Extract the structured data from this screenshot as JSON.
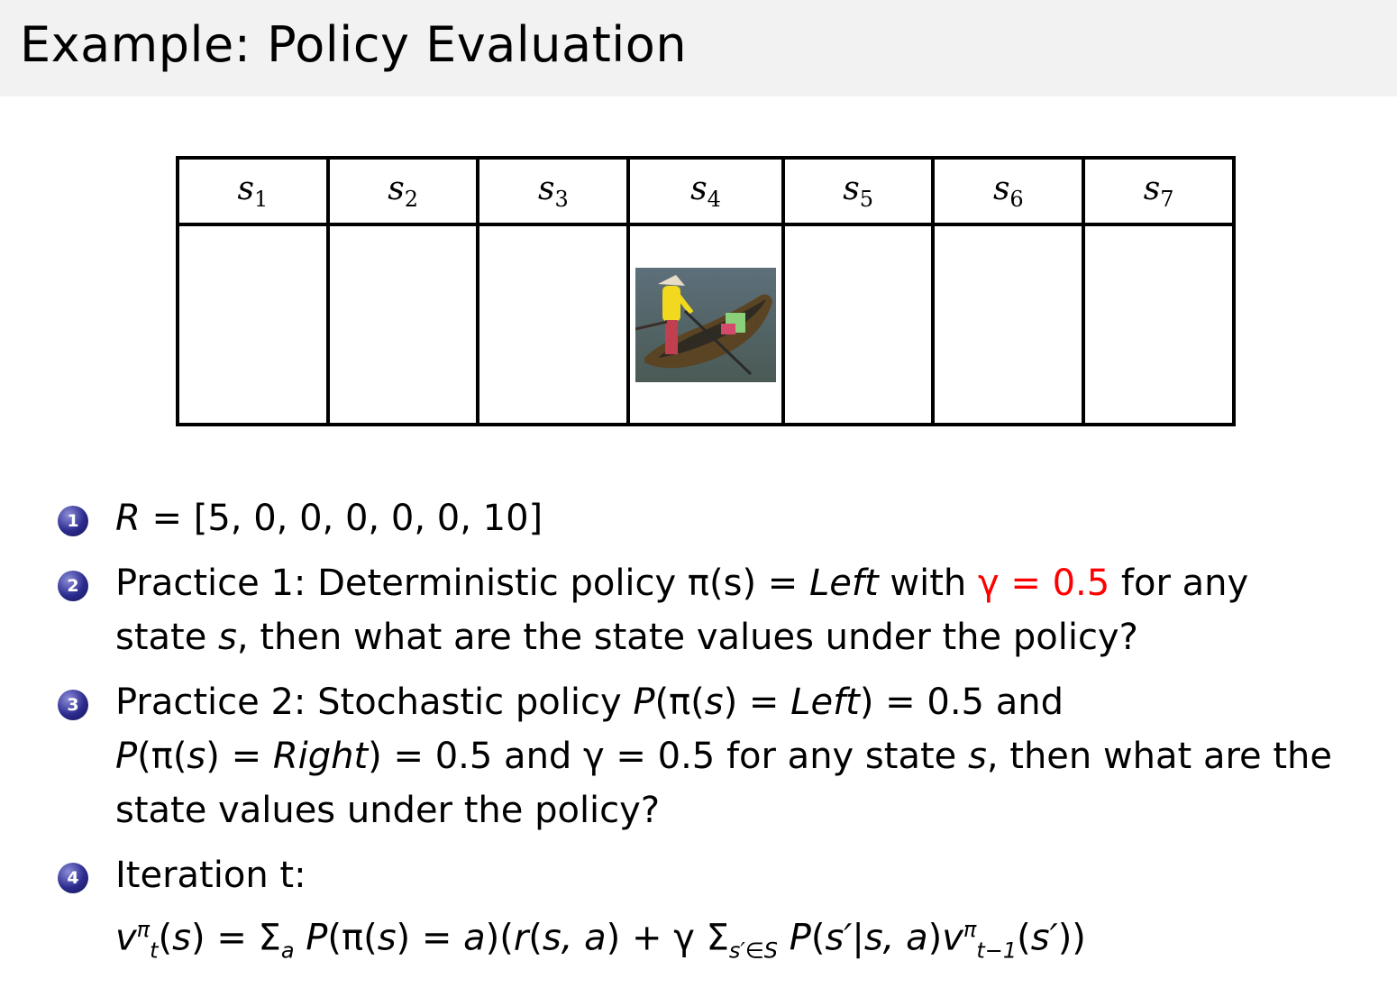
{
  "title": "Example:  Policy Evaluation",
  "states": [
    {
      "base": "s",
      "sub": "1"
    },
    {
      "base": "s",
      "sub": "2"
    },
    {
      "base": "s",
      "sub": "3"
    },
    {
      "base": "s",
      "sub": "4"
    },
    {
      "base": "s",
      "sub": "5"
    },
    {
      "base": "s",
      "sub": "6"
    },
    {
      "base": "s",
      "sub": "7"
    }
  ],
  "agent_state_index": 4,
  "agent_image": "boat-with-person",
  "accent_color": "#ff0000",
  "items": [
    {
      "number": "1",
      "lines": [
        [
          {
            "t": "R",
            "s": "it"
          },
          {
            "t": " = [5, 0, 0, 0, 0, 0, 10]"
          }
        ]
      ]
    },
    {
      "number": "2",
      "lines": [
        [
          {
            "t": "Practice 1:  Deterministic policy π(s) = "
          },
          {
            "t": "Left",
            "s": "it"
          },
          {
            "t": " with "
          },
          {
            "t": "γ = 0.5",
            "s": "red"
          },
          {
            "t": " for any"
          }
        ],
        [
          {
            "t": "state "
          },
          {
            "t": "s",
            "s": "it"
          },
          {
            "t": ", then what are the state values under the policy?"
          }
        ]
      ]
    },
    {
      "number": "3",
      "lines": [
        [
          {
            "t": "Practice 2:  Stochastic policy "
          },
          {
            "t": "P",
            "s": "it"
          },
          {
            "t": "(π("
          },
          {
            "t": "s",
            "s": "it"
          },
          {
            "t": ") = "
          },
          {
            "t": "Left",
            "s": "it"
          },
          {
            "t": ") = 0.5 and"
          }
        ],
        [
          {
            "t": "P",
            "s": "it"
          },
          {
            "t": "(π("
          },
          {
            "t": "s",
            "s": "it"
          },
          {
            "t": ") = "
          },
          {
            "t": "Right",
            "s": "it"
          },
          {
            "t": ") = 0.5 and γ = 0.5 for any state "
          },
          {
            "t": "s",
            "s": "it"
          },
          {
            "t": ", then what are the"
          }
        ],
        [
          {
            "t": "state values under the policy?"
          }
        ]
      ]
    },
    {
      "number": "4",
      "lines": [
        [
          {
            "t": "Iteration t:"
          }
        ],
        [
          {
            "t": "v",
            "s": "it"
          },
          {
            "t": "π",
            "s": "sup"
          },
          {
            "t": "t",
            "s": "sub"
          },
          {
            "t": "("
          },
          {
            "t": "s",
            "s": "it"
          },
          {
            "t": ") = Σ"
          },
          {
            "t": "a",
            "s": "sub"
          },
          {
            "t": " "
          },
          {
            "t": "P",
            "s": "it"
          },
          {
            "t": "(π("
          },
          {
            "t": "s",
            "s": "it"
          },
          {
            "t": ") = "
          },
          {
            "t": "a",
            "s": "it"
          },
          {
            "t": ")("
          },
          {
            "t": "r",
            "s": "it"
          },
          {
            "t": "("
          },
          {
            "t": "s, a",
            "s": "it"
          },
          {
            "t": ") + γ Σ"
          },
          {
            "t": "s′∈S",
            "s": "sub"
          },
          {
            "t": " "
          },
          {
            "t": "P",
            "s": "it"
          },
          {
            "t": "("
          },
          {
            "t": "s′",
            "s": "it"
          },
          {
            "t": "|"
          },
          {
            "t": "s, a",
            "s": "it"
          },
          {
            "t": ")"
          },
          {
            "t": "v",
            "s": "it"
          },
          {
            "t": "π",
            "s": "sup"
          },
          {
            "t": "t−1",
            "s": "sub"
          },
          {
            "t": "("
          },
          {
            "t": "s′",
            "s": "it"
          },
          {
            "t": "))"
          }
        ]
      ]
    }
  ]
}
